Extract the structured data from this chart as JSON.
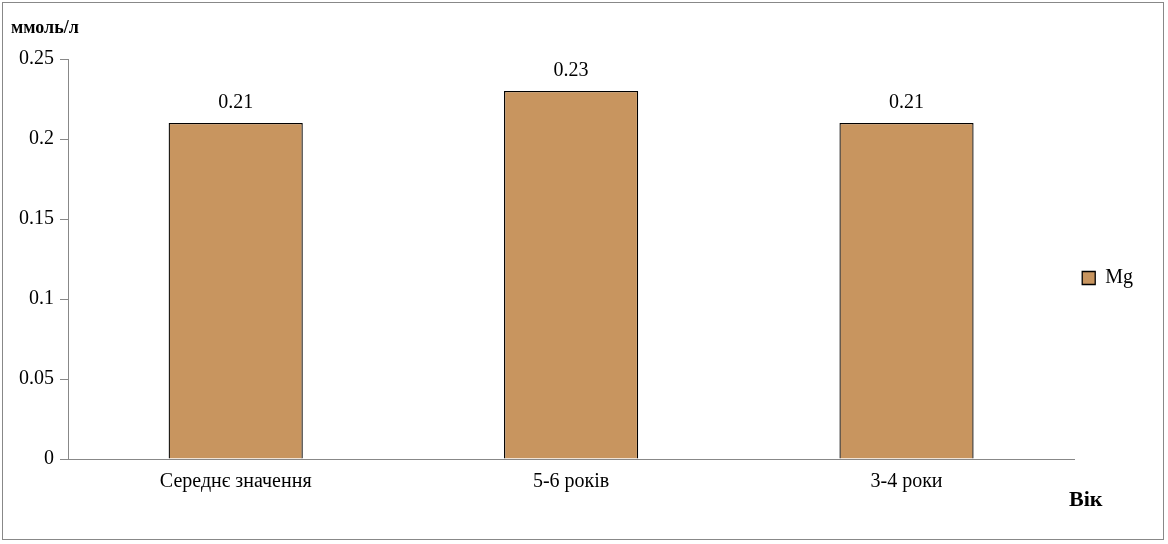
{
  "chart_data": {
    "type": "bar",
    "ylabel": "ммоль/л",
    "xlabel": "Вік",
    "categories": [
      "Середнє значення",
      "5-6 років",
      "3-4 роки"
    ],
    "series": [
      {
        "name": "Mg",
        "color": "#c8955f",
        "values": [
          0.21,
          0.23,
          0.21
        ]
      }
    ],
    "ylim": [
      0,
      0.25
    ],
    "yticks": [
      0,
      0.05,
      0.1,
      0.15,
      0.2,
      0.25
    ],
    "data_labels": true,
    "grid": false,
    "legend": "right"
  }
}
